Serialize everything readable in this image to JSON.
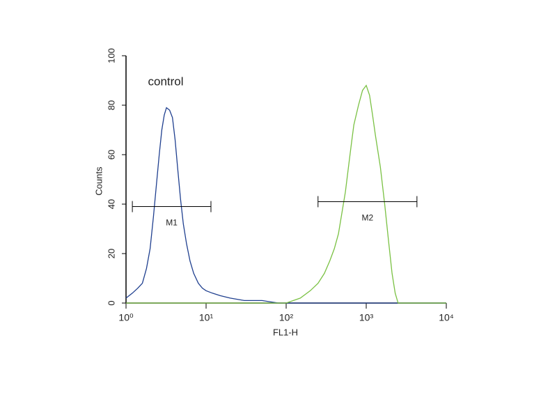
{
  "chart_data": {
    "type": "line",
    "xlabel": "FL1-H",
    "ylabel": "Counts",
    "annotation": "control",
    "xscale": "log",
    "xlim": [
      1,
      10000
    ],
    "ylim": [
      0,
      100
    ],
    "xticks": [
      {
        "value": 1,
        "label": "10⁰"
      },
      {
        "value": 10,
        "label": "10¹"
      },
      {
        "value": 100,
        "label": "10²"
      },
      {
        "value": 1000,
        "label": "10³"
      },
      {
        "value": 10000,
        "label": "10⁴"
      }
    ],
    "yticks": [
      0,
      20,
      40,
      60,
      80,
      100
    ],
    "series": [
      {
        "color": "#1f3f8f",
        "x": [
          1,
          1.2,
          1.4,
          1.6,
          1.8,
          2,
          2.2,
          2.4,
          2.6,
          2.8,
          3,
          3.2,
          3.5,
          3.8,
          4.1,
          4.4,
          4.8,
          5.2,
          5.7,
          6.3,
          7,
          8,
          9,
          10,
          12,
          15,
          20,
          30,
          50,
          80,
          200,
          1000,
          10000
        ],
        "values": [
          2,
          4,
          6,
          8,
          14,
          22,
          35,
          48,
          60,
          70,
          76,
          79,
          78,
          75,
          66,
          55,
          42,
          32,
          24,
          17,
          12,
          8,
          6,
          5,
          4,
          3,
          2,
          1,
          1,
          0,
          0,
          0,
          0
        ]
      },
      {
        "color": "#7ac143",
        "x": [
          1,
          100,
          150,
          200,
          250,
          300,
          350,
          400,
          450,
          500,
          550,
          600,
          650,
          700,
          800,
          900,
          1000,
          1100,
          1200,
          1300,
          1500,
          1700,
          1900,
          2100,
          2300,
          2500,
          10000
        ],
        "values": [
          0,
          0,
          2,
          5,
          8,
          12,
          17,
          22,
          28,
          37,
          45,
          55,
          64,
          72,
          80,
          86,
          88,
          84,
          76,
          68,
          55,
          40,
          25,
          12,
          4,
          0,
          0
        ]
      }
    ],
    "markers": [
      {
        "label": "M1",
        "x": [
          1.2,
          11.5
        ],
        "y": 39
      },
      {
        "label": "M2",
        "x": [
          250,
          4300
        ],
        "y": 41
      }
    ]
  }
}
